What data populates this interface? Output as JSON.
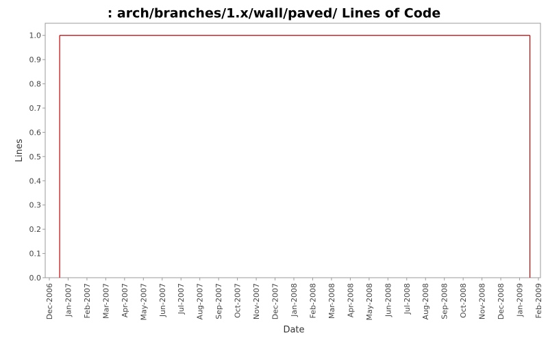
{
  "chart_data": {
    "type": "step",
    "title": ": arch/branches/1.x/wall/paved/ Lines of Code",
    "x_label": "Date",
    "y_label": "Lines",
    "x": [
      "2006-12",
      "2009-01"
    ],
    "series": [
      {
        "color": "#c00000",
        "values": [
          1.0,
          1.0
        ]
      }
    ],
    "ylim": [
      0,
      1.05
    ],
    "yticks": [
      {
        "value": 0,
        "label": "0.0"
      },
      0.1,
      0.2,
      0.3,
      0.4,
      0.5,
      0.6,
      0.7,
      0.8,
      0.9,
      {
        "value": 1,
        "label": "1.0"
      }
    ],
    "xlim": [
      "2006-12",
      "2009-02"
    ],
    "xticks": [
      {
        "value": "2006-12",
        "label": "Dec-2006"
      },
      {
        "value": "2007-01",
        "label": "Jan-2007"
      },
      {
        "value": "2007-02",
        "label": "Feb-2007"
      },
      {
        "value": "2007-03",
        "label": "Mar-2007"
      },
      {
        "value": "2007-04",
        "label": "Apr-2007"
      },
      {
        "value": "2007-05",
        "label": "May-2007"
      },
      {
        "value": "2007-06",
        "label": "Jun-2007"
      },
      {
        "value": "2007-07",
        "label": "Jul-2007"
      },
      {
        "value": "2007-08",
        "label": "Aug-2007"
      },
      {
        "value": "2007-09",
        "label": "Sep-2007"
      },
      {
        "value": "2007-10",
        "label": "Oct-2007"
      },
      {
        "value": "2007-11",
        "label": "Nov-2007"
      },
      {
        "value": "2007-12",
        "label": "Dec-2007"
      },
      {
        "value": "2008-01",
        "label": "Jan-2008"
      },
      {
        "value": "2008-02",
        "label": "Feb-2008"
      },
      {
        "value": "2008-03",
        "label": "Mar-2008"
      },
      {
        "value": "2008-04",
        "label": "Apr-2008"
      },
      {
        "value": "2008-05",
        "label": "May-2008"
      },
      {
        "value": "2008-06",
        "label": "Jun-2008"
      },
      {
        "value": "2008-07",
        "label": "Jul-2008"
      },
      {
        "value": "2008-08",
        "label": "Aug-2008"
      },
      {
        "value": "2008-09",
        "label": "Sep-2008"
      },
      {
        "value": "2008-10",
        "label": "Oct-2008"
      },
      {
        "value": "2008-11",
        "label": "Nov-2008"
      },
      {
        "value": "2008-12",
        "label": "Dec-2008"
      },
      {
        "value": "2009-01",
        "label": "Jan-2009"
      },
      {
        "value": "2009-02",
        "label": "Feb-2009"
      }
    ],
    "grid": false
  }
}
